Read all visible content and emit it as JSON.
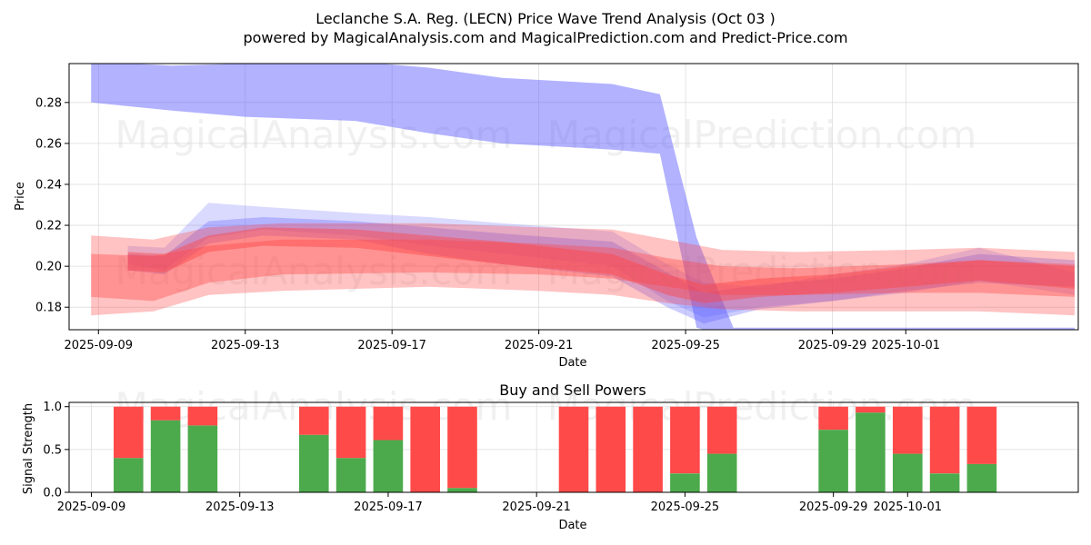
{
  "title_line1": "Leclanche S.A. Reg. (LECN) Price Wave Trend Analysis (Oct 03 )",
  "title_line2": "powered by MagicalAnalysis.com and MagicalPrediction.com and Predict-Price.com",
  "watermarks": [
    "MagicalAnalysis.com",
    "MagicalPrediction.com"
  ],
  "colors": {
    "blue": "#5555ff",
    "red": "#ff4444",
    "buy": "#4caa4c",
    "sell": "#ff4a4a"
  },
  "chart_data": [
    {
      "type": "area",
      "title": "",
      "xlabel": "Date",
      "ylabel": "Price",
      "x_ticks": [
        "2025-09-09",
        "2025-09-13",
        "2025-09-17",
        "2025-09-21",
        "2025-09-25",
        "2025-09-29",
        "2025-10-01"
      ],
      "y_ticks": [
        "0.18",
        "0.20",
        "0.22",
        "0.24",
        "0.26",
        "0.28"
      ],
      "ylim": [
        0.169,
        0.299
      ],
      "xlim_days": [
        7.2,
        34.7
      ],
      "x_origin_date": "2025-09-01",
      "grid": true,
      "series": [
        {
          "name": "blue-upper",
          "color": "blue",
          "x": [
            7.8,
            10,
            12,
            15,
            17,
            19,
            22,
            23.3,
            24.3,
            25.3,
            27,
            29,
            31,
            32.5,
            34.6
          ],
          "upper": [
            0.3,
            0.298,
            0.299,
            0.3,
            0.297,
            0.292,
            0.289,
            0.284,
            0.214,
            0.17,
            0.17,
            0.17,
            0.17,
            0.17,
            0.17
          ],
          "lower": [
            0.28,
            0.276,
            0.273,
            0.271,
            0.265,
            0.26,
            0.257,
            0.255,
            0.17,
            0.165,
            0.165,
            0.165,
            0.165,
            0.165,
            0.165
          ]
        },
        {
          "name": "blue-fan-1",
          "color": "blue",
          "x": [
            8.8,
            9.8,
            11,
            12.5,
            15,
            17,
            19,
            22,
            23.5,
            24.5,
            26,
            28,
            30,
            32,
            34.6
          ],
          "upper": [
            0.21,
            0.209,
            0.231,
            0.229,
            0.226,
            0.224,
            0.221,
            0.217,
            0.201,
            0.192,
            0.19,
            0.196,
            0.201,
            0.209,
            0.197
          ],
          "lower": [
            0.201,
            0.198,
            0.214,
            0.218,
            0.215,
            0.21,
            0.206,
            0.2,
            0.183,
            0.175,
            0.18,
            0.183,
            0.187,
            0.193,
            0.186
          ]
        },
        {
          "name": "blue-fan-2",
          "color": "blue",
          "x": [
            8.8,
            9.8,
            11,
            12.5,
            15,
            17,
            19,
            22,
            23.5,
            24.5,
            26,
            28,
            30,
            32,
            34.6
          ],
          "upper": [
            0.206,
            0.205,
            0.222,
            0.224,
            0.222,
            0.219,
            0.216,
            0.212,
            0.197,
            0.187,
            0.191,
            0.194,
            0.199,
            0.206,
            0.203
          ],
          "lower": [
            0.198,
            0.196,
            0.211,
            0.215,
            0.213,
            0.206,
            0.201,
            0.195,
            0.18,
            0.172,
            0.179,
            0.183,
            0.188,
            0.192,
            0.19
          ]
        },
        {
          "name": "red-wide",
          "color": "red",
          "x": [
            7.8,
            9.5,
            11,
            13,
            17,
            20,
            22,
            23.5,
            25,
            27,
            30,
            32,
            34.6
          ],
          "upper": [
            0.215,
            0.213,
            0.219,
            0.221,
            0.221,
            0.219,
            0.218,
            0.213,
            0.208,
            0.207,
            0.208,
            0.209,
            0.207
          ],
          "lower": [
            0.176,
            0.178,
            0.186,
            0.188,
            0.19,
            0.188,
            0.186,
            0.182,
            0.179,
            0.178,
            0.178,
            0.178,
            0.176
          ]
        },
        {
          "name": "red-mid",
          "color": "red",
          "x": [
            7.8,
            9.5,
            11,
            13,
            17,
            20,
            22,
            23.5,
            25,
            27,
            30,
            32,
            34.6
          ],
          "upper": [
            0.206,
            0.205,
            0.21,
            0.213,
            0.213,
            0.211,
            0.209,
            0.204,
            0.2,
            0.199,
            0.201,
            0.203,
            0.201
          ],
          "lower": [
            0.185,
            0.183,
            0.192,
            0.196,
            0.197,
            0.196,
            0.194,
            0.19,
            0.186,
            0.186,
            0.187,
            0.187,
            0.185
          ]
        },
        {
          "name": "red-core",
          "color": "red",
          "x": [
            8.8,
            9.8,
            11,
            12.5,
            15,
            17,
            19,
            22,
            23.5,
            24.5,
            26,
            28,
            30,
            32,
            34.6
          ],
          "upper": [
            0.207,
            0.206,
            0.215,
            0.219,
            0.218,
            0.215,
            0.212,
            0.206,
            0.196,
            0.191,
            0.194,
            0.196,
            0.2,
            0.203,
            0.2
          ],
          "lower": [
            0.198,
            0.197,
            0.207,
            0.21,
            0.209,
            0.205,
            0.201,
            0.196,
            0.186,
            0.182,
            0.185,
            0.187,
            0.19,
            0.193,
            0.189
          ]
        }
      ]
    },
    {
      "type": "bar",
      "title": "Buy and Sell Powers",
      "xlabel": "Date",
      "ylabel": "Signal Strength",
      "x_ticks": [
        "2025-09-09",
        "2025-09-13",
        "2025-09-17",
        "2025-09-21",
        "2025-09-25",
        "2025-09-29",
        "2025-10-01"
      ],
      "y_ticks": [
        "0.0",
        "0.5",
        "1.0"
      ],
      "ylim": [
        0,
        1.05
      ],
      "xlim_days": [
        7.4,
        34.6
      ],
      "x_origin_date": "2025-09-01",
      "grid": true,
      "series": [
        {
          "name": "Buy",
          "color": "buy"
        },
        {
          "name": "Sell",
          "color": "sell"
        }
      ],
      "bars": [
        {
          "date": "2025-09-10",
          "buy": 0.4
        },
        {
          "date": "2025-09-11",
          "buy": 0.84
        },
        {
          "date": "2025-09-12",
          "buy": 0.78
        },
        {
          "date": "2025-09-15",
          "buy": 0.67
        },
        {
          "date": "2025-09-16",
          "buy": 0.4
        },
        {
          "date": "2025-09-17",
          "buy": 0.61
        },
        {
          "date": "2025-09-18",
          "buy": 0.0
        },
        {
          "date": "2025-09-19",
          "buy": 0.05
        },
        {
          "date": "2025-09-22",
          "buy": 0.0
        },
        {
          "date": "2025-09-23",
          "buy": 0.0
        },
        {
          "date": "2025-09-24",
          "buy": 0.0
        },
        {
          "date": "2025-09-25",
          "buy": 0.22
        },
        {
          "date": "2025-09-26",
          "buy": 0.45
        },
        {
          "date": "2025-09-29",
          "buy": 0.73
        },
        {
          "date": "2025-09-30",
          "buy": 0.93
        },
        {
          "date": "2025-10-01",
          "buy": 0.45
        },
        {
          "date": "2025-10-02",
          "buy": 0.22
        },
        {
          "date": "2025-10-03",
          "buy": 0.33
        }
      ]
    }
  ]
}
